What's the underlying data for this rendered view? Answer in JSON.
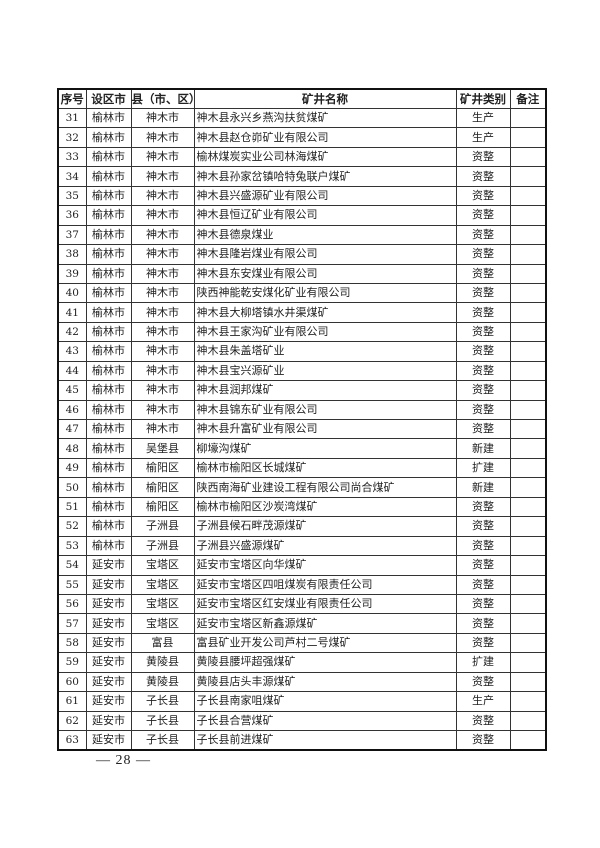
{
  "table": {
    "headers": [
      "序号",
      "设区市",
      "县（市、区）",
      "矿井名称",
      "矿井类别",
      "备注"
    ],
    "rows": [
      [
        "31",
        "榆林市",
        "神木市",
        "神木县永兴乡燕沟扶贫煤矿",
        "生产",
        ""
      ],
      [
        "32",
        "榆林市",
        "神木市",
        "神木县赵仓峁矿业有限公司",
        "生产",
        ""
      ],
      [
        "33",
        "榆林市",
        "神木市",
        "榆林煤炭实业公司林海煤矿",
        "资整",
        ""
      ],
      [
        "34",
        "榆林市",
        "神木市",
        "神木县孙家岔镇哈特兔联户煤矿",
        "资整",
        ""
      ],
      [
        "35",
        "榆林市",
        "神木市",
        "神木县兴盛源矿业有限公司",
        "资整",
        ""
      ],
      [
        "36",
        "榆林市",
        "神木市",
        "神木县恒辽矿业有限公司",
        "资整",
        ""
      ],
      [
        "37",
        "榆林市",
        "神木市",
        "神木县德泉煤业",
        "资整",
        ""
      ],
      [
        "38",
        "榆林市",
        "神木市",
        "神木县隆岩煤业有限公司",
        "资整",
        ""
      ],
      [
        "39",
        "榆林市",
        "神木市",
        "神木县东安煤业有限公司",
        "资整",
        ""
      ],
      [
        "40",
        "榆林市",
        "神木市",
        "陕西神能乾安煤化矿业有限公司",
        "资整",
        ""
      ],
      [
        "41",
        "榆林市",
        "神木市",
        "神木县大柳塔镇水井渠煤矿",
        "资整",
        ""
      ],
      [
        "42",
        "榆林市",
        "神木市",
        "神木县王家沟矿业有限公司",
        "资整",
        ""
      ],
      [
        "43",
        "榆林市",
        "神木市",
        "神木县朱盖塔矿业",
        "资整",
        ""
      ],
      [
        "44",
        "榆林市",
        "神木市",
        "神木县宝兴源矿业",
        "资整",
        ""
      ],
      [
        "45",
        "榆林市",
        "神木市",
        "神木县润邦煤矿",
        "资整",
        ""
      ],
      [
        "46",
        "榆林市",
        "神木市",
        "神木县锦东矿业有限公司",
        "资整",
        ""
      ],
      [
        "47",
        "榆林市",
        "神木市",
        "神木县升富矿业有限公司",
        "资整",
        ""
      ],
      [
        "48",
        "榆林市",
        "吴堡县",
        "柳壕沟煤矿",
        "新建",
        ""
      ],
      [
        "49",
        "榆林市",
        "榆阳区",
        "榆林市榆阳区长城煤矿",
        "扩建",
        ""
      ],
      [
        "50",
        "榆林市",
        "榆阳区",
        "陕西南海矿业建设工程有限公司尚合煤矿",
        "新建",
        ""
      ],
      [
        "51",
        "榆林市",
        "榆阳区",
        "榆林市榆阳区沙炭湾煤矿",
        "资整",
        ""
      ],
      [
        "52",
        "榆林市",
        "子洲县",
        "子洲县候石畔茂源煤矿",
        "资整",
        ""
      ],
      [
        "53",
        "榆林市",
        "子洲县",
        "子洲县兴盛源煤矿",
        "资整",
        ""
      ],
      [
        "54",
        "延安市",
        "宝塔区",
        "延安市宝塔区向华煤矿",
        "资整",
        ""
      ],
      [
        "55",
        "延安市",
        "宝塔区",
        "延安市宝塔区四咀煤炭有限责任公司",
        "资整",
        ""
      ],
      [
        "56",
        "延安市",
        "宝塔区",
        "延安市宝塔区红安煤业有限责任公司",
        "资整",
        ""
      ],
      [
        "57",
        "延安市",
        "宝塔区",
        "延安市宝塔区新鑫源煤矿",
        "资整",
        ""
      ],
      [
        "58",
        "延安市",
        "富县",
        "富县矿业开发公司芦村二号煤矿",
        "资整",
        ""
      ],
      [
        "59",
        "延安市",
        "黄陵县",
        "黄陵县腰坪超强煤矿",
        "扩建",
        ""
      ],
      [
        "60",
        "延安市",
        "黄陵县",
        "黄陵县店头丰源煤矿",
        "资整",
        ""
      ],
      [
        "61",
        "延安市",
        "子长县",
        "子长县南家咀煤矿",
        "生产",
        ""
      ],
      [
        "62",
        "延安市",
        "子长县",
        "子长县合营煤矿",
        "资整",
        ""
      ],
      [
        "63",
        "延安市",
        "子长县",
        "子长县前进煤矿",
        "资整",
        ""
      ]
    ]
  },
  "footer": {
    "page_number": "— 28 —"
  }
}
